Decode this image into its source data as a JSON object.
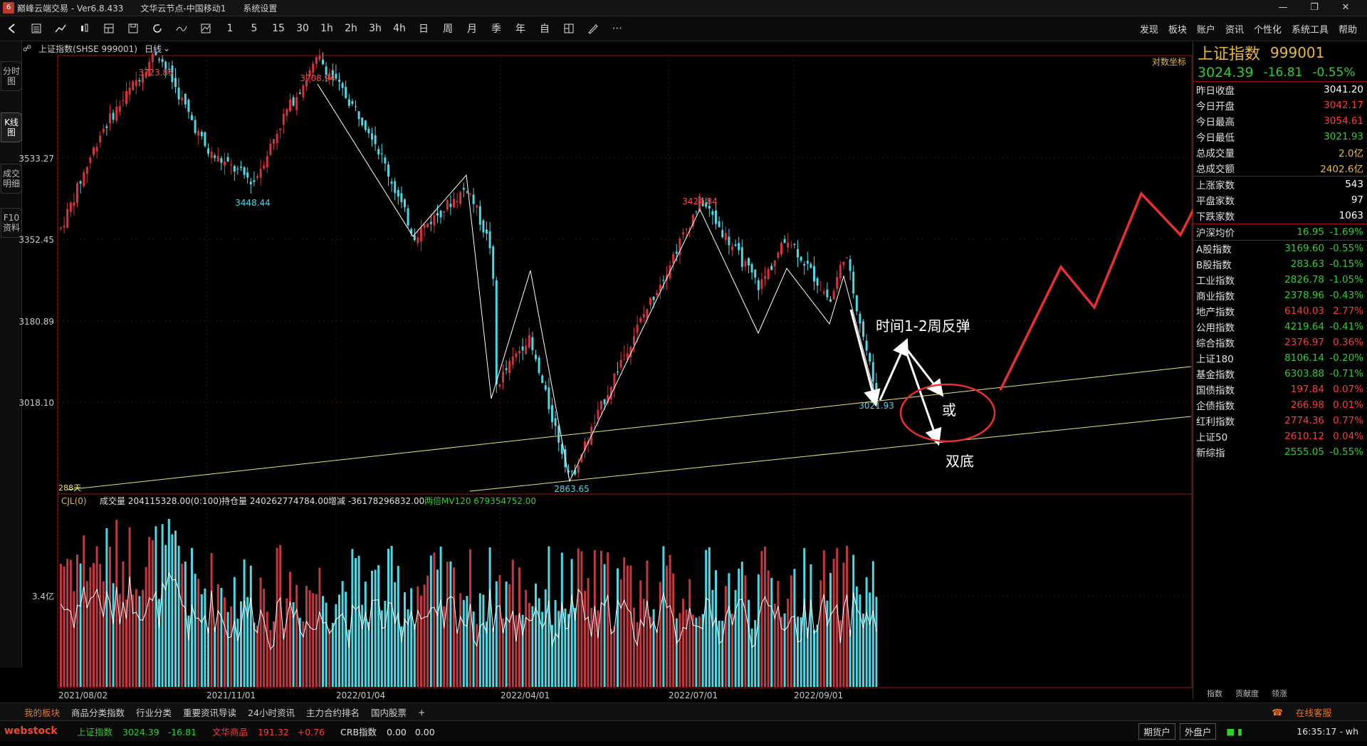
{
  "titlebar": {
    "app_title": "巅峰云端交易 - Ver6.8.433",
    "server": "文华云节点-中国移动1",
    "menu": "系统设置"
  },
  "toolbar": {
    "periods": [
      "1",
      "5",
      "15",
      "30",
      "1h",
      "2h",
      "3h",
      "4h",
      "日",
      "周",
      "月",
      "季",
      "年",
      "自"
    ],
    "right_menu": [
      "发现",
      "板块",
      "账户",
      "资讯",
      "个性化",
      "系统工具",
      "帮助"
    ]
  },
  "left_tabs": [
    "分时图",
    "K线图",
    "成交明细",
    "F10资料"
  ],
  "chart_header": {
    "symbol": "上证指数(SHSE 999001)",
    "period": "日线"
  },
  "main_chart": {
    "coord_label": "对数坐标",
    "y_ticks": [
      "3533.27",
      "3352.45",
      "3180.89",
      "3018.10"
    ],
    "x_dates": [
      "2021/08/02",
      "2021/11/01",
      "2022/01/04",
      "2022/04/01",
      "2022/07/01",
      "2022/09/01"
    ],
    "price_marks": [
      "3723.85",
      "3708.94",
      "3448.44",
      "3424.84",
      "3021.93",
      "2863.65"
    ],
    "day_count": "288天",
    "annotations": {
      "rebound_text": "时间1-2周反弹",
      "or_text": "或",
      "double_bottom_text": "双底"
    }
  },
  "volume_panel": {
    "indicator": "CJL(0)",
    "volume": "成交量 204115328.00(0:100)",
    "open_interest": "持仓量 240262774784.00",
    "change": "增减 -36178296832.00",
    "ma": "两倍MV120 679354752.00",
    "y_tick": "3.4亿"
  },
  "right_panel": {
    "name": "上证指数",
    "code": "999001",
    "last": "3024.39",
    "change": "-16.81",
    "pct": "-0.55%",
    "stats": [
      {
        "label": "昨日收盘",
        "value": "3041.20",
        "color": "#ffffff"
      },
      {
        "label": "今日开盘",
        "value": "3042.17",
        "color": "#ff3b3b"
      },
      {
        "label": "今日最高",
        "value": "3054.61",
        "color": "#ff3b3b"
      },
      {
        "label": "今日最低",
        "value": "3021.93",
        "color": "#2ed02e"
      },
      {
        "label": "总成交量",
        "value": "2.0亿",
        "color": "#e8b83c"
      },
      {
        "label": "总成交额",
        "value": "2402.6亿",
        "color": "#e8b83c"
      }
    ],
    "breadth": [
      {
        "label": "上涨家数",
        "value": "543"
      },
      {
        "label": "平盘家数",
        "value": "97"
      },
      {
        "label": "下跌家数",
        "value": "1063"
      }
    ],
    "avg": {
      "label": "沪深均价",
      "value": "16.95",
      "pct": "-1.69%"
    },
    "indices": [
      {
        "label": "A股指数",
        "value": "3169.60",
        "pct": "-0.55%",
        "color": "#2ed02e"
      },
      {
        "label": "B股指数",
        "value": "283.63",
        "pct": "-0.15%",
        "color": "#2ed02e"
      },
      {
        "label": "工业指数",
        "value": "2826.78",
        "pct": "-1.05%",
        "color": "#2ed02e"
      },
      {
        "label": "商业指数",
        "value": "2378.96",
        "pct": "-0.43%",
        "color": "#2ed02e"
      },
      {
        "label": "地产指数",
        "value": "6140.03",
        "pct": "2.77%",
        "color": "#ff3b3b"
      },
      {
        "label": "公用指数",
        "value": "4219.64",
        "pct": "-0.41%",
        "color": "#2ed02e"
      },
      {
        "label": "综合指数",
        "value": "2376.97",
        "pct": "0.36%",
        "color": "#ff3b3b"
      },
      {
        "label": "上证180",
        "value": "8106.14",
        "pct": "-0.20%",
        "color": "#2ed02e"
      },
      {
        "label": "基金指数",
        "value": "6303.88",
        "pct": "-0.71%",
        "color": "#2ed02e"
      },
      {
        "label": "国债指数",
        "value": "197.84",
        "pct": "0.07%",
        "color": "#ff3b3b"
      },
      {
        "label": "企债指数",
        "value": "266.98",
        "pct": "0.01%",
        "color": "#ff3b3b"
      },
      {
        "label": "红利指数",
        "value": "2774.36",
        "pct": "0.77%",
        "color": "#ff3b3b"
      },
      {
        "label": "上证50",
        "value": "2610.12",
        "pct": "0.04%",
        "color": "#ff3b3b"
      },
      {
        "label": "新综指",
        "value": "2555.05",
        "pct": "-0.55%",
        "color": "#2ed02e"
      }
    ],
    "bottom_tabs": [
      "指数",
      "贡献度",
      "领涨"
    ]
  },
  "bottom_tabs": [
    "我的板块",
    "商品分类指数",
    "行业分类",
    "重要资讯导读",
    "24小时资讯",
    "主力合约排名",
    "国内股票",
    "+"
  ],
  "statusbar": {
    "logo": "webstock",
    "quote1_name": "上证指数",
    "quote1_value": "3024.39",
    "quote1_change": "-16.81",
    "quote2_name": "文华商品",
    "quote2_value": "191.32",
    "quote2_change": "+0.76",
    "quote3_name": "CRB指数",
    "quote3_value": "0.00",
    "quote3_change": "0.00",
    "btn1": "期货户",
    "btn2": "外盘户",
    "online": "在线客服",
    "time": "16:35:17 - wh"
  },
  "colors": {
    "up": "#ff3b3b",
    "down": "#2ed02e",
    "candle_up": "#d2343a",
    "candle_down": "#4fd8e4",
    "accent": "#e8b83c",
    "frame": "#a01010"
  }
}
